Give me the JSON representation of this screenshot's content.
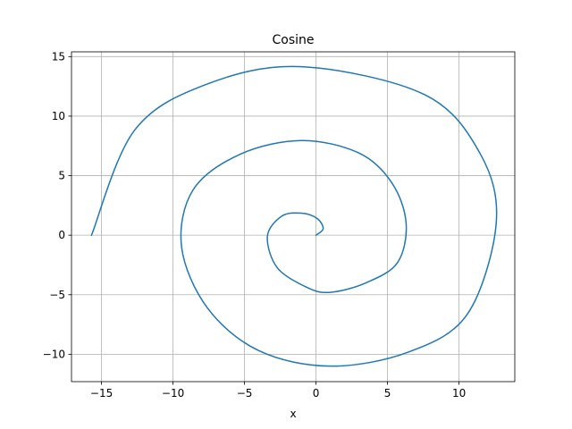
{
  "chart_data": {
    "type": "line",
    "title": "Cosine",
    "xlabel": "x",
    "ylabel": "",
    "xlim": [
      -17.1,
      13.9
    ],
    "ylim": [
      -12.3,
      15.4
    ],
    "grid": true,
    "xticks": [
      -15,
      -10,
      -5,
      0,
      5,
      10
    ],
    "xtick_labels": [
      "−15",
      "−10",
      "−5",
      "0",
      "5",
      "10"
    ],
    "yticks": [
      -10,
      -5,
      0,
      5,
      10,
      15
    ],
    "ytick_labels": [
      "−10",
      "−5",
      "0",
      "5",
      "10",
      "15"
    ],
    "series": [
      {
        "color": "#1f77b4",
        "curve": "x = t·cos(t), y = t·sin(t)",
        "t_range": [
          0,
          15.708
        ],
        "points": [
          [
            0,
            0
          ],
          [
            0.5,
            0.55
          ],
          [
            0.08,
            1.4
          ],
          [
            -1,
            1.85
          ],
          [
            -2.4,
            1.6
          ],
          [
            -3.4,
            -0.1
          ],
          [
            -2.7,
            -2.75
          ],
          [
            -0.6,
            -4.4
          ],
          [
            1,
            -4.8
          ],
          [
            3.5,
            -4
          ],
          [
            5.7,
            -2.3
          ],
          [
            6.3,
            1
          ],
          [
            5.3,
            4.4
          ],
          [
            3,
            6.9
          ],
          [
            -1,
            7.95
          ],
          [
            -5.3,
            6.8
          ],
          [
            -8.6,
            3.8
          ],
          [
            -9.4,
            -1
          ],
          [
            -7.6,
            -6.1
          ],
          [
            -4,
            -9.7
          ],
          [
            1,
            -11
          ],
          [
            6.5,
            -9.8
          ],
          [
            10.6,
            -6.6
          ],
          [
            12.6,
            1
          ],
          [
            11.5,
            6.8
          ],
          [
            7.6,
            11.8
          ],
          [
            -1,
            14.15
          ],
          [
            -7.6,
            12.7
          ],
          [
            -12.7,
            8.8
          ],
          [
            -15.7,
            0
          ]
        ]
      }
    ]
  }
}
